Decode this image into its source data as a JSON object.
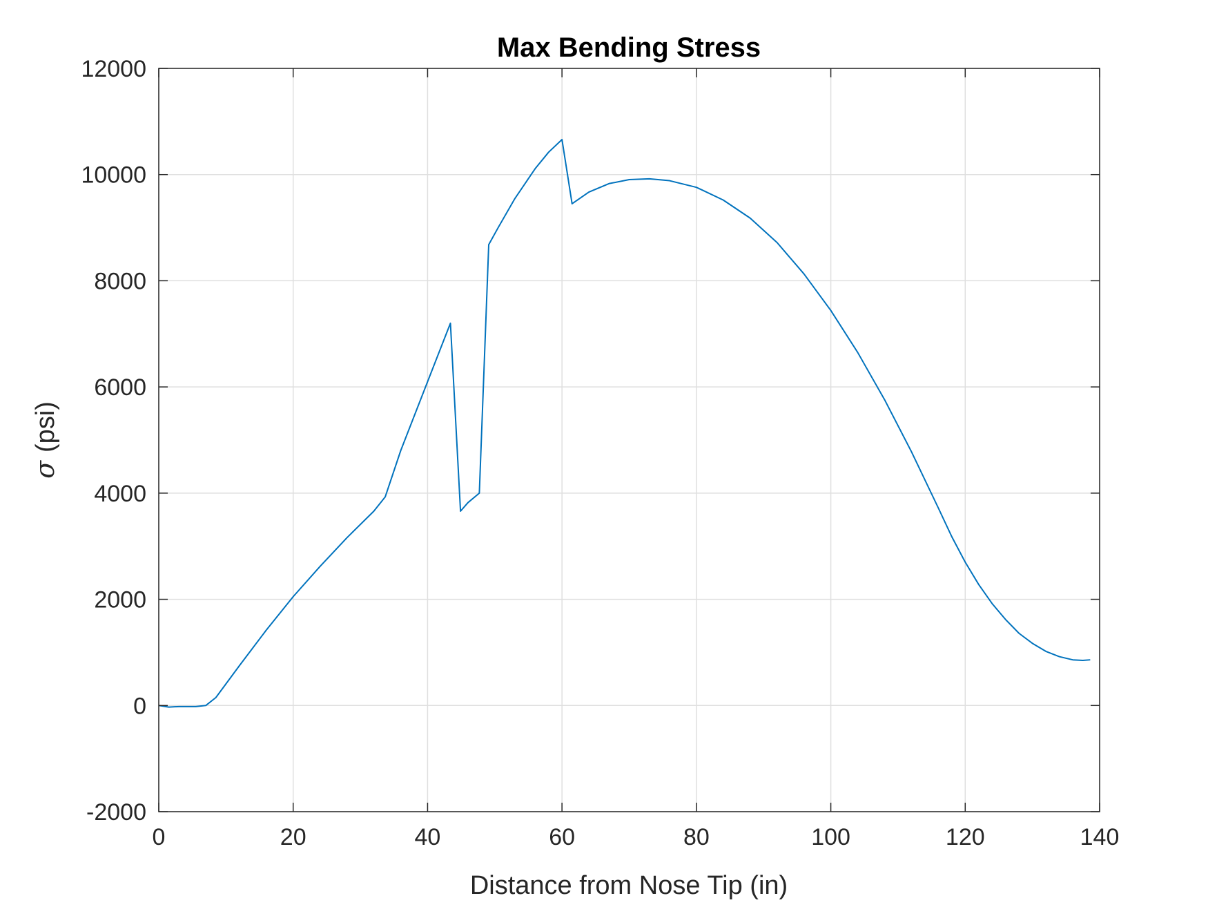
{
  "chart_data": {
    "type": "line",
    "title": "Max Bending Stress",
    "xlabel": "Distance from Nose Tip (in)",
    "ylabel_symbol": "σ",
    "ylabel_unit": "(psi)",
    "xlim": [
      0,
      140
    ],
    "ylim": [
      -2000,
      12000
    ],
    "xticks": [
      0,
      20,
      40,
      60,
      80,
      100,
      120,
      140
    ],
    "yticks": [
      -2000,
      0,
      2000,
      4000,
      6000,
      8000,
      10000,
      12000
    ],
    "grid": true,
    "line_color": "#0072BD",
    "series": [
      {
        "x": [
          0,
          1.5,
          3,
          5.5,
          7,
          8.5,
          12,
          16,
          20,
          24,
          28,
          32,
          33.7,
          36,
          40,
          43.4,
          44.9,
          46,
          47.7,
          49.1,
          50.5,
          53,
          56,
          58,
          60,
          61.5,
          64,
          67,
          70,
          73,
          76,
          80,
          84,
          88,
          92,
          96,
          100,
          104,
          108,
          112,
          116,
          118,
          120,
          122,
          124,
          126,
          128,
          130,
          132,
          134,
          136,
          137.5,
          138.6
        ],
        "y": [
          0,
          -30,
          -20,
          -20,
          0,
          150,
          750,
          1420,
          2050,
          2620,
          3160,
          3660,
          3930,
          4800,
          6100,
          7200,
          3660,
          3820,
          4000,
          8680,
          9000,
          9550,
          10110,
          10420,
          10660,
          9450,
          9670,
          9830,
          9905,
          9920,
          9885,
          9760,
          9520,
          9180,
          8720,
          8130,
          7440,
          6650,
          5760,
          4780,
          3720,
          3180,
          2700,
          2280,
          1920,
          1620,
          1360,
          1170,
          1020,
          920,
          860,
          850,
          860
        ]
      }
    ]
  }
}
